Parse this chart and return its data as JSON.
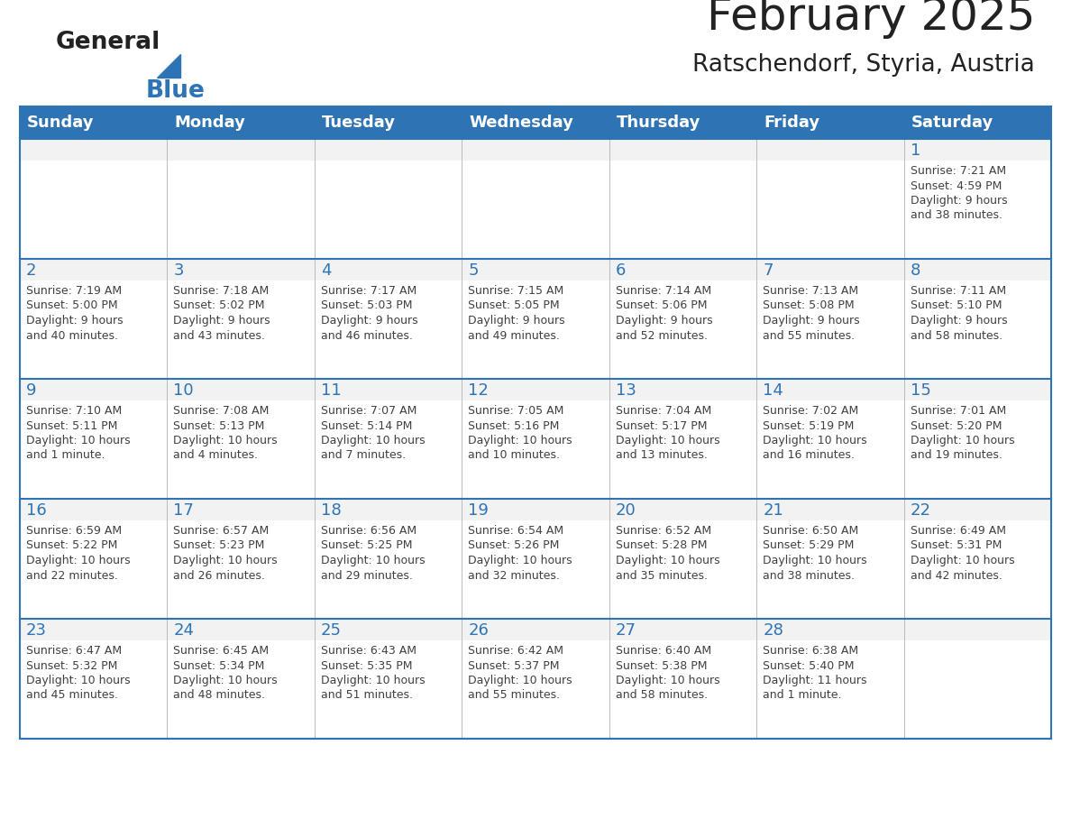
{
  "title": "February 2025",
  "subtitle": "Ratschendorf, Styria, Austria",
  "days_of_week": [
    "Sunday",
    "Monday",
    "Tuesday",
    "Wednesday",
    "Thursday",
    "Friday",
    "Saturday"
  ],
  "header_bg": "#2E74B5",
  "header_text": "#FFFFFF",
  "cell_bg_light": "#FFFFFF",
  "cell_bg_gray": "#F2F2F2",
  "border_color": "#2E74B5",
  "day_number_color": "#2E74B5",
  "info_text_color": "#404040",
  "title_color": "#222222",
  "calendar_data": [
    [
      null,
      null,
      null,
      null,
      null,
      null,
      {
        "day": 1,
        "sunrise": "7:21 AM",
        "sunset": "4:59 PM",
        "daylight_line1": "9 hours",
        "daylight_line2": "and 38 minutes."
      }
    ],
    [
      {
        "day": 2,
        "sunrise": "7:19 AM",
        "sunset": "5:00 PM",
        "daylight_line1": "9 hours",
        "daylight_line2": "and 40 minutes."
      },
      {
        "day": 3,
        "sunrise": "7:18 AM",
        "sunset": "5:02 PM",
        "daylight_line1": "9 hours",
        "daylight_line2": "and 43 minutes."
      },
      {
        "day": 4,
        "sunrise": "7:17 AM",
        "sunset": "5:03 PM",
        "daylight_line1": "9 hours",
        "daylight_line2": "and 46 minutes."
      },
      {
        "day": 5,
        "sunrise": "7:15 AM",
        "sunset": "5:05 PM",
        "daylight_line1": "9 hours",
        "daylight_line2": "and 49 minutes."
      },
      {
        "day": 6,
        "sunrise": "7:14 AM",
        "sunset": "5:06 PM",
        "daylight_line1": "9 hours",
        "daylight_line2": "and 52 minutes."
      },
      {
        "day": 7,
        "sunrise": "7:13 AM",
        "sunset": "5:08 PM",
        "daylight_line1": "9 hours",
        "daylight_line2": "and 55 minutes."
      },
      {
        "day": 8,
        "sunrise": "7:11 AM",
        "sunset": "5:10 PM",
        "daylight_line1": "9 hours",
        "daylight_line2": "and 58 minutes."
      }
    ],
    [
      {
        "day": 9,
        "sunrise": "7:10 AM",
        "sunset": "5:11 PM",
        "daylight_line1": "10 hours",
        "daylight_line2": "and 1 minute."
      },
      {
        "day": 10,
        "sunrise": "7:08 AM",
        "sunset": "5:13 PM",
        "daylight_line1": "10 hours",
        "daylight_line2": "and 4 minutes."
      },
      {
        "day": 11,
        "sunrise": "7:07 AM",
        "sunset": "5:14 PM",
        "daylight_line1": "10 hours",
        "daylight_line2": "and 7 minutes."
      },
      {
        "day": 12,
        "sunrise": "7:05 AM",
        "sunset": "5:16 PM",
        "daylight_line1": "10 hours",
        "daylight_line2": "and 10 minutes."
      },
      {
        "day": 13,
        "sunrise": "7:04 AM",
        "sunset": "5:17 PM",
        "daylight_line1": "10 hours",
        "daylight_line2": "and 13 minutes."
      },
      {
        "day": 14,
        "sunrise": "7:02 AM",
        "sunset": "5:19 PM",
        "daylight_line1": "10 hours",
        "daylight_line2": "and 16 minutes."
      },
      {
        "day": 15,
        "sunrise": "7:01 AM",
        "sunset": "5:20 PM",
        "daylight_line1": "10 hours",
        "daylight_line2": "and 19 minutes."
      }
    ],
    [
      {
        "day": 16,
        "sunrise": "6:59 AM",
        "sunset": "5:22 PM",
        "daylight_line1": "10 hours",
        "daylight_line2": "and 22 minutes."
      },
      {
        "day": 17,
        "sunrise": "6:57 AM",
        "sunset": "5:23 PM",
        "daylight_line1": "10 hours",
        "daylight_line2": "and 26 minutes."
      },
      {
        "day": 18,
        "sunrise": "6:56 AM",
        "sunset": "5:25 PM",
        "daylight_line1": "10 hours",
        "daylight_line2": "and 29 minutes."
      },
      {
        "day": 19,
        "sunrise": "6:54 AM",
        "sunset": "5:26 PM",
        "daylight_line1": "10 hours",
        "daylight_line2": "and 32 minutes."
      },
      {
        "day": 20,
        "sunrise": "6:52 AM",
        "sunset": "5:28 PM",
        "daylight_line1": "10 hours",
        "daylight_line2": "and 35 minutes."
      },
      {
        "day": 21,
        "sunrise": "6:50 AM",
        "sunset": "5:29 PM",
        "daylight_line1": "10 hours",
        "daylight_line2": "and 38 minutes."
      },
      {
        "day": 22,
        "sunrise": "6:49 AM",
        "sunset": "5:31 PM",
        "daylight_line1": "10 hours",
        "daylight_line2": "and 42 minutes."
      }
    ],
    [
      {
        "day": 23,
        "sunrise": "6:47 AM",
        "sunset": "5:32 PM",
        "daylight_line1": "10 hours",
        "daylight_line2": "and 45 minutes."
      },
      {
        "day": 24,
        "sunrise": "6:45 AM",
        "sunset": "5:34 PM",
        "daylight_line1": "10 hours",
        "daylight_line2": "and 48 minutes."
      },
      {
        "day": 25,
        "sunrise": "6:43 AM",
        "sunset": "5:35 PM",
        "daylight_line1": "10 hours",
        "daylight_line2": "and 51 minutes."
      },
      {
        "day": 26,
        "sunrise": "6:42 AM",
        "sunset": "5:37 PM",
        "daylight_line1": "10 hours",
        "daylight_line2": "and 55 minutes."
      },
      {
        "day": 27,
        "sunrise": "6:40 AM",
        "sunset": "5:38 PM",
        "daylight_line1": "10 hours",
        "daylight_line2": "and 58 minutes."
      },
      {
        "day": 28,
        "sunrise": "6:38 AM",
        "sunset": "5:40 PM",
        "daylight_line1": "11 hours",
        "daylight_line2": "and 1 minute."
      },
      null
    ]
  ],
  "logo_general_color": "#222222",
  "logo_blue_color": "#2E74B5"
}
